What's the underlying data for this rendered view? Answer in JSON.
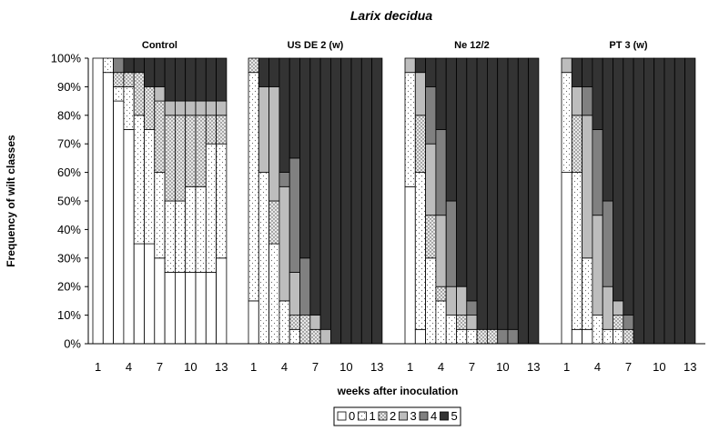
{
  "chart_data": {
    "type": "bar",
    "stacked": true,
    "normalized": true,
    "title": "Larix decidua",
    "ylabel": "Frequency of wilt classes",
    "xlabel": "weeks after inoculation",
    "ylim": [
      0,
      100
    ],
    "yticks": [
      "0%",
      "10%",
      "20%",
      "30%",
      "40%",
      "50%",
      "60%",
      "70%",
      "80%",
      "90%",
      "100%"
    ],
    "xticks": [
      "1",
      "4",
      "7",
      "10",
      "13"
    ],
    "weeks": [
      1,
      2,
      3,
      4,
      5,
      6,
      7,
      8,
      9,
      10,
      11,
      12,
      13
    ],
    "classes": [
      "0",
      "1",
      "2",
      "3",
      "4",
      "5"
    ],
    "class_colors": [
      "#ffffff",
      "#f5f5f5",
      "#d4d4d4",
      "#bdbdbd",
      "#808080",
      "#333333"
    ],
    "legend": [
      "0",
      "1",
      "2",
      "3",
      "4",
      "5"
    ],
    "panels": [
      {
        "title": "Control",
        "weeks": [
          [
            100,
            0,
            0,
            0,
            0,
            0
          ],
          [
            95,
            5,
            0,
            0,
            0,
            0
          ],
          [
            85,
            5,
            5,
            0,
            5,
            0
          ],
          [
            75,
            15,
            5,
            0,
            0,
            5
          ],
          [
            35,
            45,
            15,
            0,
            0,
            5
          ],
          [
            35,
            40,
            15,
            0,
            0,
            10
          ],
          [
            30,
            30,
            25,
            5,
            0,
            10
          ],
          [
            25,
            25,
            30,
            5,
            0,
            15
          ],
          [
            25,
            25,
            30,
            5,
            0,
            15
          ],
          [
            25,
            30,
            25,
            5,
            0,
            15
          ],
          [
            25,
            30,
            25,
            5,
            0,
            15
          ],
          [
            25,
            45,
            10,
            5,
            0,
            15
          ],
          [
            30,
            40,
            10,
            5,
            0,
            15
          ]
        ]
      },
      {
        "title": "US DE 2 (w)",
        "weeks": [
          [
            15,
            80,
            5,
            0,
            0,
            0
          ],
          [
            0,
            60,
            0,
            30,
            0,
            10
          ],
          [
            0,
            35,
            15,
            40,
            0,
            10
          ],
          [
            0,
            15,
            0,
            40,
            5,
            40
          ],
          [
            0,
            5,
            5,
            15,
            40,
            35
          ],
          [
            0,
            0,
            10,
            0,
            20,
            70
          ],
          [
            0,
            0,
            5,
            5,
            0,
            90
          ],
          [
            0,
            0,
            0,
            5,
            0,
            95
          ],
          [
            0,
            0,
            0,
            0,
            0,
            100
          ],
          [
            0,
            0,
            0,
            0,
            0,
            100
          ],
          [
            0,
            0,
            0,
            0,
            0,
            100
          ],
          [
            0,
            0,
            0,
            0,
            0,
            100
          ],
          [
            0,
            0,
            0,
            0,
            0,
            100
          ]
        ]
      },
      {
        "title": "Ne 12/2",
        "weeks": [
          [
            55,
            40,
            0,
            5,
            0,
            0
          ],
          [
            5,
            55,
            20,
            15,
            0,
            5
          ],
          [
            0,
            30,
            15,
            25,
            20,
            10
          ],
          [
            0,
            15,
            5,
            25,
            30,
            25
          ],
          [
            0,
            10,
            0,
            10,
            30,
            50
          ],
          [
            0,
            5,
            5,
            10,
            0,
            80
          ],
          [
            0,
            5,
            0,
            5,
            5,
            85
          ],
          [
            0,
            0,
            5,
            0,
            0,
            95
          ],
          [
            0,
            0,
            5,
            0,
            0,
            95
          ],
          [
            0,
            0,
            0,
            0,
            5,
            95
          ],
          [
            0,
            0,
            0,
            0,
            5,
            95
          ],
          [
            0,
            0,
            0,
            0,
            0,
            100
          ],
          [
            0,
            0,
            0,
            0,
            0,
            100
          ]
        ]
      },
      {
        "title": "PT 3 (w)",
        "weeks": [
          [
            60,
            35,
            0,
            5,
            0,
            0
          ],
          [
            5,
            55,
            20,
            10,
            0,
            10
          ],
          [
            5,
            25,
            0,
            50,
            10,
            10
          ],
          [
            0,
            10,
            0,
            35,
            30,
            25
          ],
          [
            0,
            5,
            0,
            15,
            30,
            50
          ],
          [
            0,
            5,
            5,
            5,
            0,
            85
          ],
          [
            0,
            0,
            5,
            0,
            5,
            90
          ],
          [
            0,
            0,
            0,
            0,
            0,
            100
          ],
          [
            0,
            0,
            0,
            0,
            0,
            100
          ],
          [
            0,
            0,
            0,
            0,
            0,
            100
          ],
          [
            0,
            0,
            0,
            0,
            0,
            100
          ],
          [
            0,
            0,
            0,
            0,
            0,
            100
          ],
          [
            0,
            0,
            0,
            0,
            0,
            100
          ]
        ]
      }
    ]
  }
}
